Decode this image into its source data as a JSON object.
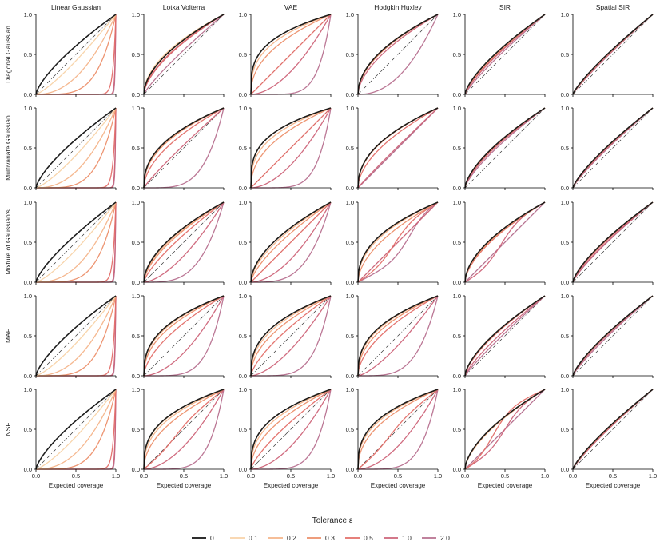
{
  "chart_data": {
    "type": "line",
    "title": "",
    "columns": [
      "Linear Gaussian",
      "Lotka Volterra",
      "VAE",
      "Hodgkin Huxley",
      "SIR",
      "Spatial SIR"
    ],
    "rows": [
      "Diagonal Gaussian",
      "Multivariate Gaussian",
      "Mixture of Gaussian's",
      "MAF",
      "NSF"
    ],
    "xlabel": "Expected coverage",
    "ylabel": "",
    "xlim": [
      0,
      1
    ],
    "ylim": [
      0,
      1
    ],
    "xticks": [
      "0.0",
      "0.5",
      "1.0"
    ],
    "yticks": [
      "0.0",
      "0.5",
      "1.0"
    ],
    "diagonal": "dash-dot reference line y = x",
    "legend": {
      "title": "Tolerance ε",
      "placement": "bottom-center",
      "entries": [
        "0",
        "0.1",
        "0.2",
        "0.3",
        "0.5",
        "1.0",
        "2.0"
      ],
      "colors": [
        "#111111",
        "#f8d3a8",
        "#f4b48a",
        "#ec8f6a",
        "#e36e68",
        "#cd6479",
        "#b7708f"
      ]
    },
    "curve_model": "empirical coverage = expected^gamma (gamma < 1 above diagonal, > 1 below); sigmoid-shaped curves given as [a, c, k]",
    "series_gamma": [
      [
        [
          0.72,
          1.25,
          2.2,
          4.5,
          30,
          90,
          120
        ],
        [
          0.55,
          0.52,
          0.53,
          0.55,
          0.6,
          0.62,
          0.85
        ],
        [
          0.3,
          0.3,
          0.35,
          0.45,
          1.0,
          1.8,
          6.5
        ],
        [
          0.5,
          0.5,
          0.5,
          0.52,
          0.52,
          0.58,
          2.2
        ],
        [
          0.7,
          0.7,
          0.72,
          0.72,
          0.75,
          0.78,
          0.85
        ],
        [
          0.82,
          0.83,
          0.83,
          0.83,
          0.85,
          0.86,
          0.88
        ]
      ],
      [
        [
          0.72,
          1.3,
          2.3,
          4.5,
          30,
          90,
          120
        ],
        [
          0.42,
          0.42,
          0.43,
          0.45,
          0.55,
          0.9,
          4.2
        ],
        [
          0.3,
          0.3,
          0.35,
          0.45,
          1.0,
          1.8,
          6.0
        ],
        [
          0.45,
          0.45,
          0.45,
          0.46,
          0.55,
          0.95,
          1.0
        ],
        [
          0.65,
          0.65,
          0.65,
          0.66,
          0.68,
          0.7,
          0.75
        ],
        [
          0.78,
          0.78,
          0.79,
          0.79,
          0.8,
          0.82,
          0.85
        ]
      ],
      [
        [
          0.75,
          1.3,
          2.4,
          4.6,
          30,
          90,
          120
        ],
        [
          0.55,
          0.55,
          0.58,
          0.62,
          0.75,
          1.6,
          3.5
        ],
        [
          0.55,
          0.55,
          0.6,
          0.7,
          1.0,
          1.8,
          3.5
        ],
        [
          0.42,
          0.42,
          0.45,
          0.55,
          [
            0.6,
            0.45,
            9
          ],
          1.0,
          [
            0.5,
            0.65,
            9
          ]
        ],
        [
          0.55,
          0.55,
          0.56,
          0.58,
          0.6,
          [
            0.55,
            0.45,
            9
          ],
          1.0
        ],
        [
          0.72,
          0.72,
          0.72,
          0.73,
          0.75,
          0.8,
          0.82
        ]
      ],
      [
        [
          0.72,
          1.3,
          2.3,
          4.5,
          30,
          90,
          120
        ],
        [
          0.38,
          0.38,
          0.4,
          0.45,
          0.6,
          1.8,
          5.0
        ],
        [
          0.38,
          0.38,
          0.42,
          0.5,
          0.7,
          1.6,
          5.0
        ],
        [
          0.38,
          0.38,
          0.4,
          0.45,
          0.55,
          1.4,
          4.0
        ],
        [
          0.65,
          0.65,
          0.65,
          0.66,
          0.68,
          0.8,
          0.9
        ],
        [
          0.76,
          0.76,
          0.77,
          0.77,
          0.78,
          0.8,
          0.85
        ]
      ],
      [
        [
          0.72,
          1.3,
          2.3,
          4.5,
          30,
          90,
          120
        ],
        [
          0.35,
          0.36,
          0.4,
          0.5,
          [
            0.8,
            0.4,
            9
          ],
          1.8,
          5.5
        ],
        [
          0.35,
          0.35,
          0.4,
          0.5,
          0.75,
          1.8,
          5.5
        ],
        [
          0.35,
          0.35,
          0.38,
          0.45,
          [
            0.8,
            0.4,
            9
          ],
          1.8,
          5.0
        ],
        [
          0.6,
          0.6,
          0.62,
          0.62,
          [
            0.45,
            0.35,
            9
          ],
          [
            0.6,
            0.5,
            10
          ],
          1.0
        ],
        [
          0.8,
          0.8,
          0.8,
          0.82,
          0.82,
          0.85,
          0.85
        ]
      ]
    ]
  }
}
